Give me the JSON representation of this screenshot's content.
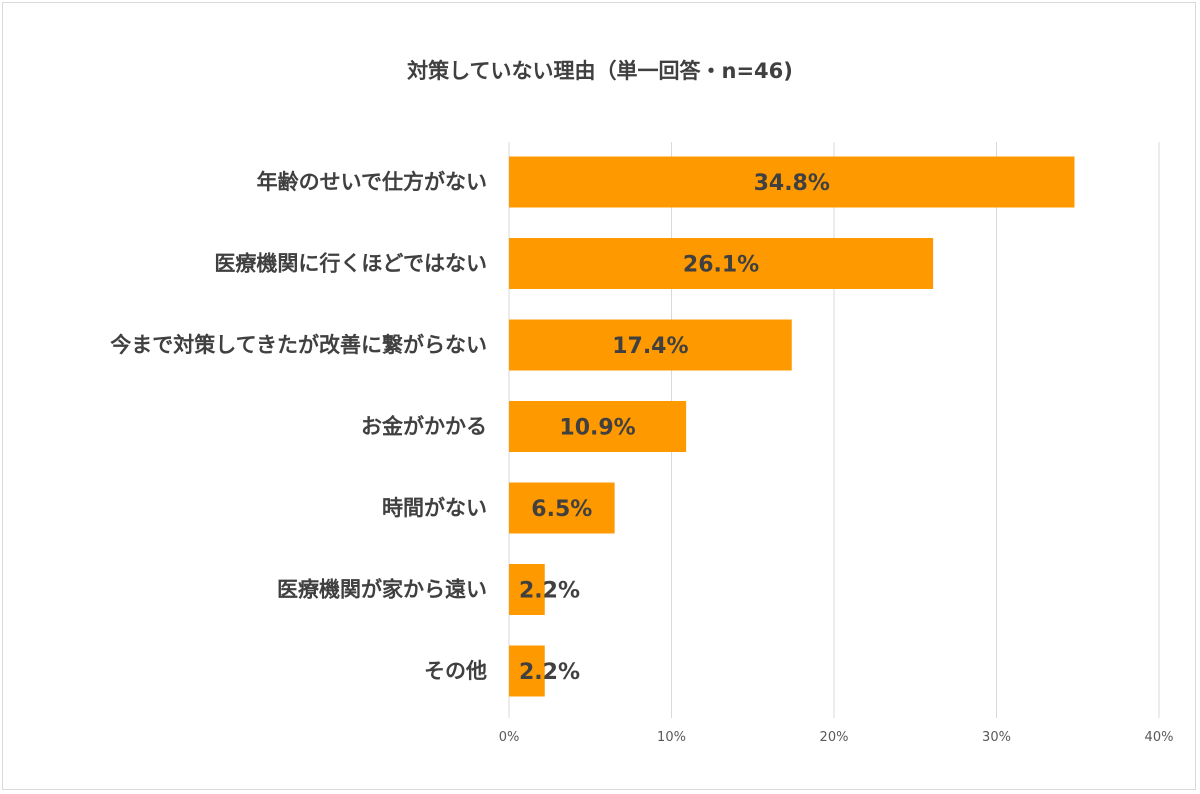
{
  "chart_data": {
    "type": "bar",
    "orientation": "horizontal",
    "title": "対策していない理由（単一回答・n=46)",
    "categories": [
      "年齢のせいで仕方がない",
      "医療機関に行くほどではない",
      "今まで対策してきたが改善に繋がらない",
      "お金がかかる",
      "時間がない",
      "医療機関が家から遠い",
      "その他"
    ],
    "values": [
      34.8,
      26.1,
      17.4,
      10.9,
      6.5,
      2.2,
      2.2
    ],
    "value_labels": [
      "34.8%",
      "26.1%",
      "17.4%",
      "10.9%",
      "6.5%",
      "2.2%",
      "2.2%"
    ],
    "xlim": [
      0,
      40
    ],
    "xticks": [
      0,
      10,
      20,
      30,
      40
    ],
    "xtick_labels": [
      "0%",
      "10%",
      "20%",
      "30%",
      "40%"
    ],
    "grid": true,
    "legend": "none",
    "bar_color": "#ff9900",
    "gridline_color": "#d9d9d9",
    "text_color": "#404040"
  }
}
